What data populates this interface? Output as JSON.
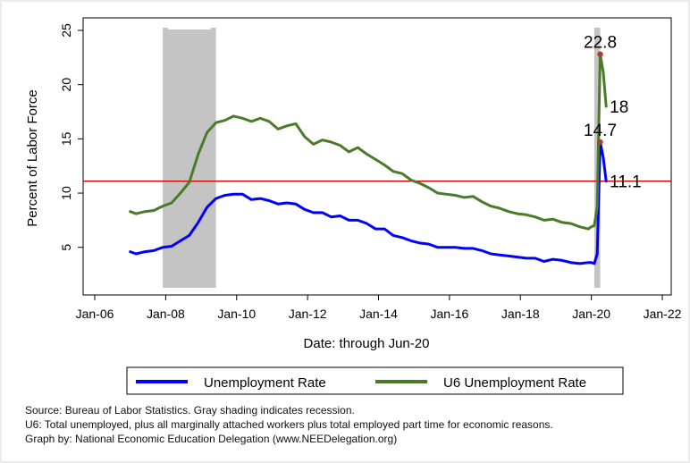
{
  "chart_data": {
    "type": "line",
    "xlabel": "Date: through Jun-20",
    "ylabel": "Percent of Labor Force",
    "xlim": [
      "2006-01",
      "2022-01"
    ],
    "ylim": [
      3,
      25
    ],
    "x_ticks": [
      "Jan-06",
      "Jan-08",
      "Jan-10",
      "Jan-12",
      "Jan-14",
      "Jan-16",
      "Jan-18",
      "Jan-20",
      "Jan-22"
    ],
    "y_ticks": [
      5,
      10,
      15,
      20,
      25
    ],
    "grid": false,
    "legend_position": "bottom",
    "reference_line": {
      "y": 11.1,
      "color": "#cc0000"
    },
    "recessions": [
      {
        "start": "2007-12",
        "end": "2009-06"
      },
      {
        "start": "2020-02",
        "end": "2020-04"
      }
    ],
    "series": [
      {
        "name": "Unemployment Rate",
        "color": "#0000ff",
        "points": [
          [
            "2007-01",
            4.6
          ],
          [
            "2007-03",
            4.4
          ],
          [
            "2007-06",
            4.6
          ],
          [
            "2007-09",
            4.7
          ],
          [
            "2007-12",
            5.0
          ],
          [
            "2008-03",
            5.1
          ],
          [
            "2008-06",
            5.6
          ],
          [
            "2008-09",
            6.1
          ],
          [
            "2008-12",
            7.3
          ],
          [
            "2009-03",
            8.7
          ],
          [
            "2009-06",
            9.5
          ],
          [
            "2009-09",
            9.8
          ],
          [
            "2009-12",
            9.9
          ],
          [
            "2010-03",
            9.9
          ],
          [
            "2010-06",
            9.4
          ],
          [
            "2010-09",
            9.5
          ],
          [
            "2010-12",
            9.3
          ],
          [
            "2011-03",
            9.0
          ],
          [
            "2011-06",
            9.1
          ],
          [
            "2011-09",
            9.0
          ],
          [
            "2011-12",
            8.5
          ],
          [
            "2012-03",
            8.2
          ],
          [
            "2012-06",
            8.2
          ],
          [
            "2012-09",
            7.8
          ],
          [
            "2012-12",
            7.9
          ],
          [
            "2013-03",
            7.5
          ],
          [
            "2013-06",
            7.5
          ],
          [
            "2013-09",
            7.2
          ],
          [
            "2013-12",
            6.7
          ],
          [
            "2014-03",
            6.7
          ],
          [
            "2014-06",
            6.1
          ],
          [
            "2014-09",
            5.9
          ],
          [
            "2014-12",
            5.6
          ],
          [
            "2015-03",
            5.4
          ],
          [
            "2015-06",
            5.3
          ],
          [
            "2015-09",
            5.0
          ],
          [
            "2015-12",
            5.0
          ],
          [
            "2016-03",
            5.0
          ],
          [
            "2016-06",
            4.9
          ],
          [
            "2016-09",
            4.9
          ],
          [
            "2016-12",
            4.7
          ],
          [
            "2017-03",
            4.4
          ],
          [
            "2017-06",
            4.3
          ],
          [
            "2017-09",
            4.2
          ],
          [
            "2017-12",
            4.1
          ],
          [
            "2018-03",
            4.0
          ],
          [
            "2018-06",
            4.0
          ],
          [
            "2018-09",
            3.7
          ],
          [
            "2018-12",
            3.9
          ],
          [
            "2019-03",
            3.8
          ],
          [
            "2019-06",
            3.6
          ],
          [
            "2019-09",
            3.5
          ],
          [
            "2019-12",
            3.6
          ],
          [
            "2020-01",
            3.6
          ],
          [
            "2020-02",
            3.5
          ],
          [
            "2020-03",
            4.4
          ],
          [
            "2020-04",
            14.7
          ],
          [
            "2020-05",
            13.3
          ],
          [
            "2020-06",
            11.1
          ]
        ]
      },
      {
        "name": "U6 Unemployment Rate",
        "color": "#4a7a2a",
        "points": [
          [
            "2007-01",
            8.3
          ],
          [
            "2007-03",
            8.1
          ],
          [
            "2007-06",
            8.3
          ],
          [
            "2007-09",
            8.4
          ],
          [
            "2007-12",
            8.8
          ],
          [
            "2008-03",
            9.1
          ],
          [
            "2008-06",
            10.0
          ],
          [
            "2008-09",
            11.0
          ],
          [
            "2008-12",
            13.6
          ],
          [
            "2009-03",
            15.6
          ],
          [
            "2009-06",
            16.5
          ],
          [
            "2009-09",
            16.7
          ],
          [
            "2009-12",
            17.1
          ],
          [
            "2010-03",
            16.9
          ],
          [
            "2010-06",
            16.6
          ],
          [
            "2010-09",
            16.9
          ],
          [
            "2010-12",
            16.6
          ],
          [
            "2011-03",
            15.9
          ],
          [
            "2011-06",
            16.2
          ],
          [
            "2011-09",
            16.4
          ],
          [
            "2011-12",
            15.2
          ],
          [
            "2012-03",
            14.5
          ],
          [
            "2012-06",
            14.9
          ],
          [
            "2012-09",
            14.7
          ],
          [
            "2012-12",
            14.4
          ],
          [
            "2013-03",
            13.8
          ],
          [
            "2013-06",
            14.2
          ],
          [
            "2013-09",
            13.6
          ],
          [
            "2013-12",
            13.1
          ],
          [
            "2014-03",
            12.6
          ],
          [
            "2014-06",
            12.0
          ],
          [
            "2014-09",
            11.8
          ],
          [
            "2014-12",
            11.2
          ],
          [
            "2015-03",
            10.9
          ],
          [
            "2015-06",
            10.5
          ],
          [
            "2015-09",
            10.0
          ],
          [
            "2015-12",
            9.9
          ],
          [
            "2016-03",
            9.8
          ],
          [
            "2016-06",
            9.6
          ],
          [
            "2016-09",
            9.7
          ],
          [
            "2016-12",
            9.2
          ],
          [
            "2017-03",
            8.8
          ],
          [
            "2017-06",
            8.6
          ],
          [
            "2017-09",
            8.3
          ],
          [
            "2017-12",
            8.1
          ],
          [
            "2018-03",
            8.0
          ],
          [
            "2018-06",
            7.8
          ],
          [
            "2018-09",
            7.5
          ],
          [
            "2018-12",
            7.6
          ],
          [
            "2019-03",
            7.3
          ],
          [
            "2019-06",
            7.2
          ],
          [
            "2019-09",
            6.9
          ],
          [
            "2019-12",
            6.7
          ],
          [
            "2020-01",
            6.9
          ],
          [
            "2020-02",
            7.0
          ],
          [
            "2020-03",
            8.7
          ],
          [
            "2020-04",
            22.8
          ],
          [
            "2020-05",
            21.2
          ],
          [
            "2020-06",
            18.0
          ]
        ]
      }
    ],
    "annotations": [
      {
        "text": "22.8",
        "x": "2020-04",
        "y": 22.8,
        "marker": true
      },
      {
        "text": "18",
        "x": "2020-06",
        "y": 18.0,
        "marker": false
      },
      {
        "text": "14.7",
        "x": "2020-04",
        "y": 14.7,
        "marker": true
      },
      {
        "text": "11.1",
        "x": "2020-06",
        "y": 11.1,
        "marker": false
      }
    ]
  },
  "footnotes": {
    "source": "Source: Bureau of Labor Statistics. Gray shading indicates recession.",
    "u6": "U6: Total unemployed, plus all marginally attached workers plus total employed part time for economic reasons.",
    "graph_by": "Graph by: National Economic Education Delegation (www.NEEDelegation.org)"
  }
}
